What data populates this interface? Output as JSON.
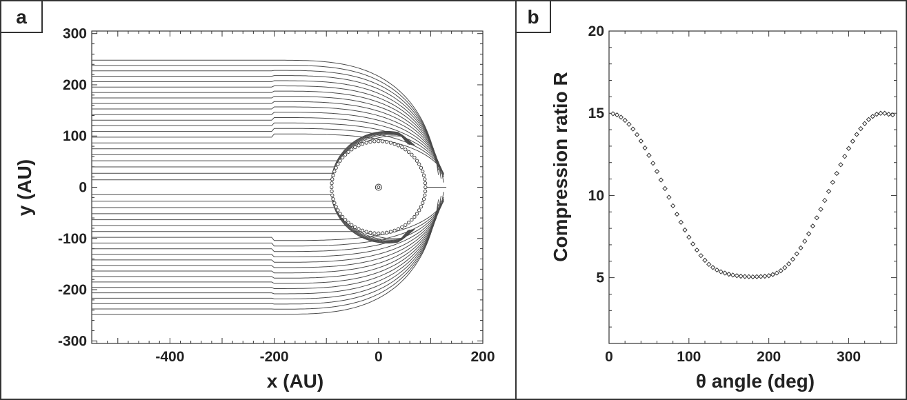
{
  "figure": {
    "panels": [
      {
        "label": "a"
      },
      {
        "label": "b"
      }
    ]
  },
  "colors": {
    "background": "#ffffff",
    "axis": "#333333",
    "streamline": "#4a4a4a",
    "marker": "#333333",
    "text": "#222222"
  },
  "chart_data": [
    {
      "type": "line",
      "panel": "a",
      "xlabel": "x (AU)",
      "ylabel": "y (AU)",
      "xlim": [
        -550,
        200
      ],
      "ylim": [
        -305,
        305
      ],
      "xticks": [
        -400,
        -200,
        0,
        200
      ],
      "yticks": [
        300,
        200,
        100,
        0,
        -100,
        -200,
        -300
      ],
      "grid": false,
      "description": "streamlines wrapping around a circular termination shock",
      "shock_radius_au": 90,
      "star_position": [
        0,
        0
      ],
      "outer_boundary_y_far": 248,
      "nose_distance_au": 130,
      "streamline_count": 44,
      "series": []
    },
    {
      "type": "scatter",
      "panel": "b",
      "xlabel": "θ angle (deg)",
      "ylabel": "Compression ratio R",
      "xlim": [
        0,
        360
      ],
      "ylim": [
        1,
        20
      ],
      "xticks": [
        0,
        100,
        200,
        300
      ],
      "yticks": [
        5,
        10,
        15,
        20
      ],
      "grid": false,
      "marker": "open-diamond",
      "x": [
        5,
        10,
        15,
        20,
        25,
        30,
        35,
        40,
        45,
        50,
        55,
        60,
        65,
        70,
        75,
        80,
        85,
        90,
        95,
        100,
        105,
        110,
        115,
        120,
        125,
        130,
        135,
        140,
        145,
        150,
        155,
        160,
        165,
        170,
        175,
        180,
        185,
        190,
        195,
        200,
        205,
        210,
        215,
        220,
        225,
        230,
        235,
        240,
        245,
        250,
        255,
        260,
        265,
        270,
        275,
        280,
        285,
        290,
        295,
        300,
        305,
        310,
        315,
        320,
        325,
        330,
        335,
        340,
        345,
        350,
        355
      ],
      "y": [
        14.97,
        14.9,
        14.76,
        14.57,
        14.33,
        14.04,
        13.7,
        13.31,
        12.89,
        12.44,
        11.96,
        11.46,
        10.94,
        10.42,
        9.89,
        9.37,
        8.86,
        8.37,
        7.9,
        7.46,
        7.05,
        6.68,
        6.34,
        6.06,
        5.81,
        5.62,
        5.47,
        5.36,
        5.28,
        5.21,
        5.16,
        5.12,
        5.09,
        5.07,
        5.06,
        5.05,
        5.06,
        5.07,
        5.09,
        5.12,
        5.19,
        5.28,
        5.42,
        5.61,
        5.84,
        6.12,
        6.45,
        6.81,
        7.22,
        7.67,
        8.14,
        8.64,
        9.16,
        9.7,
        10.25,
        10.8,
        11.34,
        11.87,
        12.38,
        12.86,
        13.3,
        13.71,
        14.06,
        14.37,
        14.62,
        14.81,
        14.94,
        15.0,
        15.0,
        14.94,
        14.9
      ]
    }
  ]
}
